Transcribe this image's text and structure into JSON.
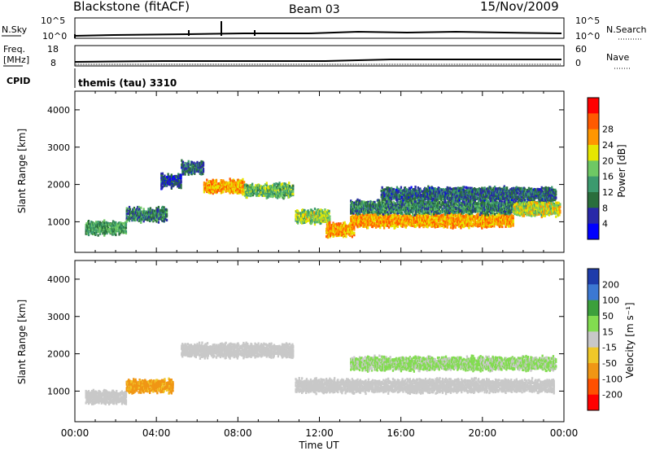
{
  "header": {
    "station": "Blackstone (fitACF)",
    "beam": "Beam 03",
    "date": "15/Nov/2009"
  },
  "noise_panel": {
    "left_label": "N.Sky",
    "left_ticks": [
      "10^5",
      "10^0"
    ],
    "right_label": "N.Search",
    "right_ticks": [
      "10^5",
      "10^0"
    ]
  },
  "freq_panel": {
    "left_label_1": "Freq.",
    "left_label_2": "[MHz]",
    "left_ticks": [
      "18",
      "8"
    ],
    "right_label": "Nave",
    "right_ticks": [
      "60",
      "0"
    ]
  },
  "cpid": {
    "label": "CPID",
    "value": "themis (tau) 3310"
  },
  "chart_data": [
    {
      "type": "heatmap",
      "title": "",
      "xlabel": "Time UT",
      "ylabel": "Slant Range [km]",
      "xlim": [
        0,
        24
      ],
      "ylim": [
        180,
        4500
      ],
      "x_ticks": [
        "00:00",
        "04:00",
        "08:00",
        "12:00",
        "16:00",
        "20:00",
        "00:00"
      ],
      "y_ticks": [
        1000,
        2000,
        3000,
        4000
      ],
      "colorbar": {
        "label": "Power [dB]",
        "ticks": [
          4,
          8,
          12,
          16,
          20,
          24,
          28
        ],
        "colors": [
          "#0000ff",
          "#2828a8",
          "#2a6e3c",
          "#3c9a6e",
          "#6ec864",
          "#e6e600",
          "#ff9600",
          "#ff5a00",
          "#ff0000"
        ]
      },
      "features": [
        {
          "t_start": 0.5,
          "t_end": 2.5,
          "range_km": 850,
          "value_db": 14
        },
        {
          "t_start": 2.5,
          "t_end": 4.5,
          "range_km": 1200,
          "value_db": 12
        },
        {
          "t_start": 4.2,
          "t_end": 5.2,
          "range_km": 2100,
          "value_db": 8
        },
        {
          "t_start": 5.2,
          "t_end": 6.3,
          "range_km": 2450,
          "value_db": 10
        },
        {
          "t_start": 6.3,
          "t_end": 8.3,
          "range_km": 1950,
          "value_db": 24
        },
        {
          "t_start": 8.3,
          "t_end": 10.7,
          "range_km": 1850,
          "value_db": 16
        },
        {
          "t_start": 10.8,
          "t_end": 12.5,
          "range_km": 1150,
          "value_db": 18
        },
        {
          "t_start": 12.3,
          "t_end": 13.7,
          "range_km": 800,
          "value_db": 24
        },
        {
          "t_start": 13.5,
          "t_end": 21.5,
          "range_km": 1050,
          "value_db": 24
        },
        {
          "t_start": 13.5,
          "t_end": 23.5,
          "range_km": 1400,
          "value_db": 12
        },
        {
          "t_start": 15.0,
          "t_end": 23.6,
          "range_km": 1750,
          "value_db": 10
        },
        {
          "t_start": 21.5,
          "t_end": 23.8,
          "range_km": 1350,
          "value_db": 20
        }
      ]
    },
    {
      "type": "heatmap",
      "title": "",
      "xlabel": "Time UT",
      "ylabel": "Slant Range [km]",
      "xlim": [
        0,
        24
      ],
      "ylim": [
        180,
        4500
      ],
      "x_ticks": [
        "00:00",
        "04:00",
        "08:00",
        "12:00",
        "16:00",
        "20:00",
        "00:00"
      ],
      "y_ticks": [
        1000,
        2000,
        3000,
        4000
      ],
      "colorbar": {
        "label": "Velocity [m s⁻¹]",
        "ticks": [
          "200",
          "100",
          "50",
          "15",
          "-15",
          "-50",
          "-100",
          "-200"
        ],
        "colors": [
          "#1e3caa",
          "#3c78d2",
          "#3ca03c",
          "#82dc50",
          "#c8c8c8",
          "#f0c828",
          "#f09614",
          "#ff5000",
          "#ff0000"
        ]
      },
      "features": [
        {
          "t_start": 0.5,
          "t_end": 2.5,
          "range_km": 850,
          "velocity": 0
        },
        {
          "t_start": 2.5,
          "t_end": 4.8,
          "range_km": 1150,
          "velocity": -60
        },
        {
          "t_start": 5.2,
          "t_end": 10.7,
          "range_km": 2100,
          "velocity": 0
        },
        {
          "t_start": 10.8,
          "t_end": 23.5,
          "range_km": 1150,
          "velocity": 0
        },
        {
          "t_start": 13.5,
          "t_end": 23.6,
          "range_km": 1750,
          "velocity": 20
        }
      ]
    }
  ]
}
